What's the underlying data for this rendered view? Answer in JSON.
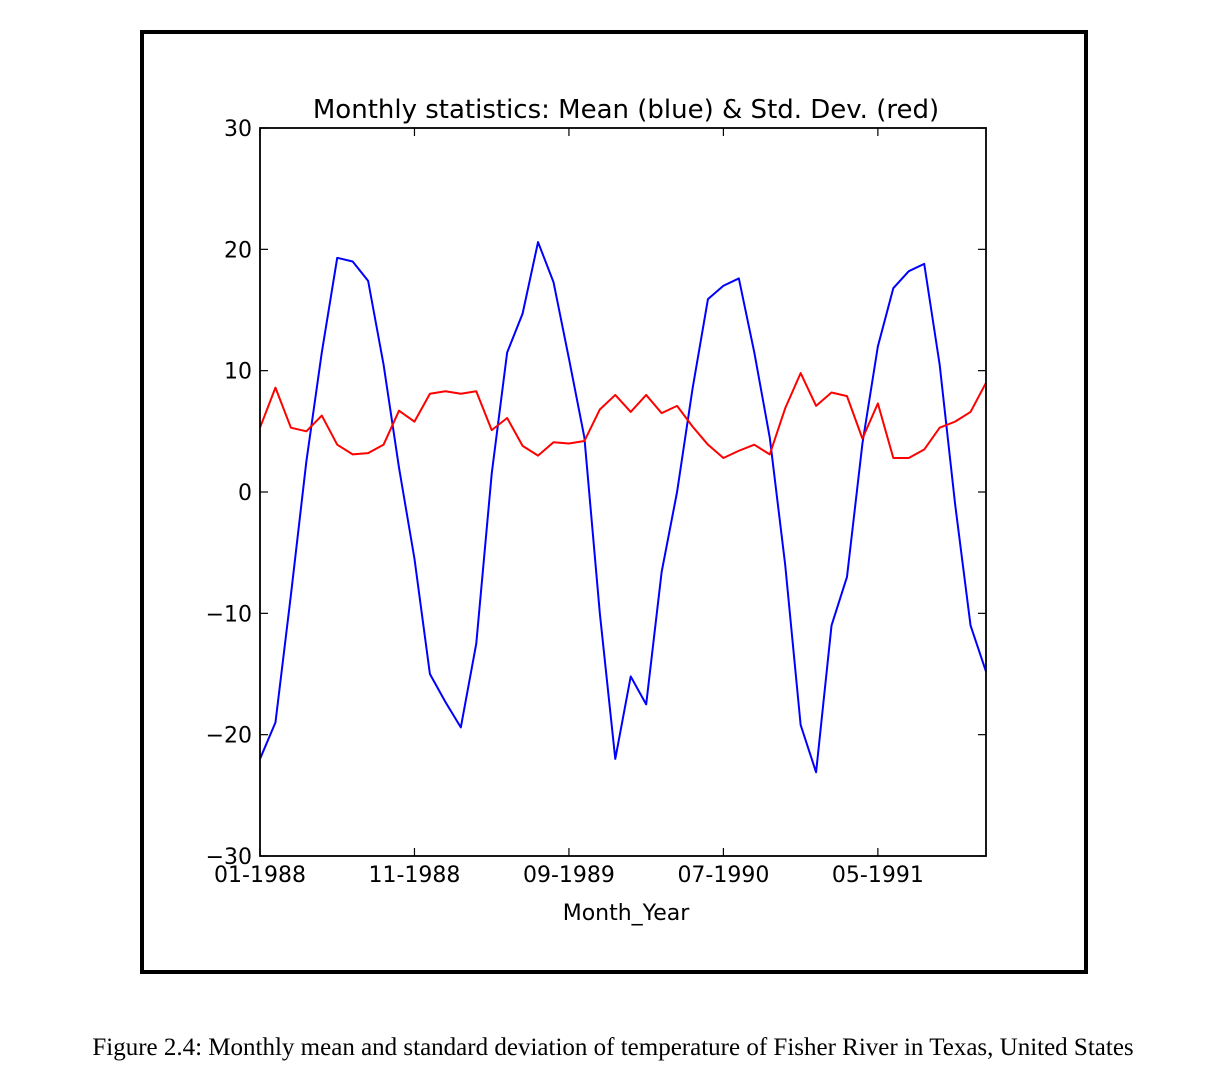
{
  "chart_data": {
    "type": "line",
    "title": "Monthly statistics: Mean (blue) & Std. Dev. (red)",
    "xlabel": "Month_Year",
    "ylabel": "",
    "ylim": [
      -30,
      30
    ],
    "yticks": [
      -30,
      -20,
      -10,
      0,
      10,
      20,
      30
    ],
    "ytick_labels": [
      "−30",
      "−20",
      "−10",
      "0",
      "10",
      "20",
      "30"
    ],
    "xticks": [
      {
        "index": 0,
        "label": "01-1988"
      },
      {
        "index": 10,
        "label": "11-1988"
      },
      {
        "index": 20,
        "label": "09-1989"
      },
      {
        "index": 30,
        "label": "07-1990"
      },
      {
        "index": 40,
        "label": "05-1991"
      }
    ],
    "x_start": "01-1988",
    "x_end": "12-1991",
    "grid": false,
    "legend": "none",
    "series": [
      {
        "color": "#0000ff",
        "values": [
          -22,
          -19,
          -8.5,
          2.5,
          11.5,
          19.3,
          19,
          17.4,
          10.5,
          2,
          -5.5,
          -15,
          -17.3,
          -19.4,
          -12.5,
          1.5,
          11.5,
          14.7,
          20.6,
          17.3,
          11,
          4.5,
          -10,
          -22,
          -15.2,
          -17.5,
          -6.6,
          0,
          8.5,
          15.9,
          17,
          17.6,
          11.5,
          4.5,
          -6,
          -19.2,
          -23.1,
          -11,
          -7,
          4,
          12,
          16.8,
          18.2,
          18.8,
          10.5,
          -1,
          -11,
          -14.8
        ]
      },
      {
        "color": "#ff0000",
        "values": [
          5.3,
          8.6,
          5.3,
          5,
          6.3,
          3.9,
          3.1,
          3.2,
          3.9,
          6.7,
          5.8,
          8.1,
          8.3,
          8.1,
          8.3,
          5.1,
          6.1,
          3.8,
          3,
          4.1,
          4,
          4.2,
          6.8,
          8,
          6.6,
          8,
          6.5,
          7.1,
          5.4,
          3.9,
          2.8,
          3.4,
          3.9,
          3.1,
          6.9,
          9.8,
          7.1,
          8.2,
          7.9,
          4.4,
          7.3,
          2.8,
          2.8,
          3.5,
          5.3,
          5.8,
          6.6,
          9
        ]
      }
    ]
  },
  "caption": "Figure 2.4: Monthly mean and standard deviation of temperature of Fisher River in Texas, United States"
}
